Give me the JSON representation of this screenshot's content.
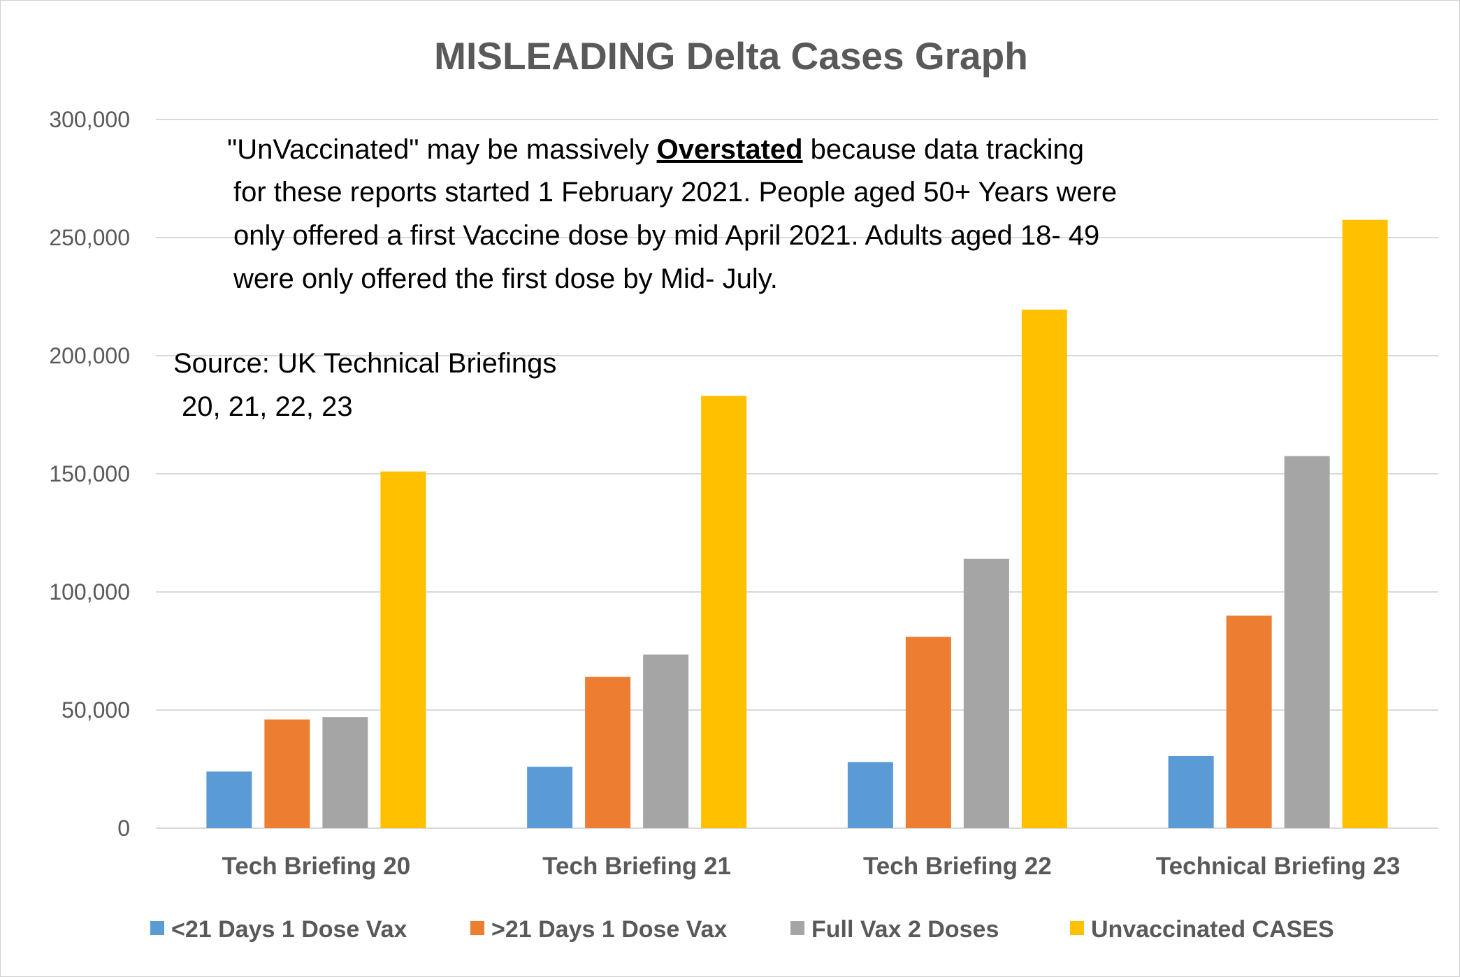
{
  "chart_data": {
    "type": "bar",
    "title": "MISLEADING Delta Cases Graph",
    "xlabel": "",
    "ylabel": "",
    "ylim": [
      0,
      300000
    ],
    "yticks": [
      0,
      50000,
      100000,
      150000,
      200000,
      250000,
      300000
    ],
    "ytick_labels": [
      "0",
      "50,000",
      "100,000",
      "150,000",
      "200,000",
      "250,000",
      "300,000"
    ],
    "grid": true,
    "legend_position": "bottom",
    "categories": [
      "Tech Briefing 20",
      "Tech Briefing 21",
      "Tech Briefing 22",
      "Technical Briefing 23"
    ],
    "series": [
      {
        "name": "<21 Days 1 Dose Vax",
        "color": "#5b9bd5",
        "values": [
          24000,
          26000,
          28000,
          30500
        ]
      },
      {
        "name": ">21 Days 1 Dose Vax",
        "color": "#ed7d31",
        "values": [
          46000,
          64000,
          81000,
          90000
        ]
      },
      {
        "name": "Full Vax 2 Doses",
        "color": "#a5a5a5",
        "values": [
          47000,
          73500,
          114000,
          157500
        ]
      },
      {
        "name": "Unvaccinated CASES",
        "color": "#ffc000",
        "values": [
          151000,
          183000,
          219500,
          257500
        ]
      }
    ],
    "annotations": {
      "note_lines": [
        {
          "before": "\"UnVaccinated\"  may be massively ",
          "emphasis": "Overstated",
          "after": " because data tracking"
        },
        {
          "before": "for these reports started 1 February 2021. People aged 50+ Years  were",
          "emphasis": "",
          "after": ""
        },
        {
          "before": "only offered a first Vaccine dose by mid April 2021.  Adults aged 18- 49",
          "emphasis": "",
          "after": ""
        },
        {
          "before": "were only offered the first dose by Mid- July.",
          "emphasis": "",
          "after": ""
        }
      ],
      "source_lines": [
        "Source: UK Technical Briefings",
        "20, 21, 22, 23"
      ]
    }
  }
}
